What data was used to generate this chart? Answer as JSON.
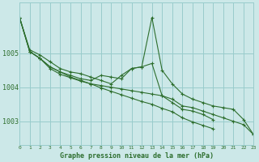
{
  "title": "Graphe pression niveau de la mer (hPa)",
  "background_color": "#cce8e8",
  "grid_color": "#99cccc",
  "line_color": "#2d6e2d",
  "xlim": [
    0,
    23
  ],
  "ylim": [
    1002.3,
    1006.5
  ],
  "yticks": [
    1003,
    1004,
    1005
  ],
  "figsize": [
    3.2,
    2.0
  ],
  "dpi": 100,
  "series": [
    [
      1006.05,
      1005.1,
      1004.95,
      1004.75,
      1004.55,
      1004.45,
      1004.4,
      1004.3,
      1004.2,
      1004.1,
      1004.35,
      1004.55,
      1004.6,
      1006.05,
      1004.5,
      1004.1,
      1003.8,
      1003.65,
      1003.55,
      1003.45,
      1003.4,
      1003.35,
      1003.05,
      1002.6
    ],
    [
      1006.05,
      1005.05,
      1004.85,
      1004.6,
      1004.45,
      1004.35,
      1004.25,
      1004.2,
      1004.35,
      1004.3,
      1004.25,
      1004.55,
      1004.6,
      1004.7,
      1003.75,
      1003.55,
      1003.35,
      1003.3,
      1003.2,
      1003.05,
      null,
      null,
      null,
      null
    ],
    [
      1006.05,
      1005.05,
      1004.85,
      1004.6,
      1004.45,
      1004.3,
      1004.2,
      1004.1,
      1004.05,
      1004.0,
      1003.95,
      1003.9,
      1003.85,
      1003.8,
      1003.75,
      1003.65,
      1003.45,
      1003.4,
      1003.3,
      1003.2,
      1003.1,
      1003.0,
      1002.9,
      1002.6
    ],
    [
      1006.05,
      1005.05,
      1004.85,
      1004.55,
      1004.38,
      1004.28,
      1004.18,
      1004.1,
      1003.98,
      1003.88,
      1003.78,
      1003.68,
      1003.58,
      1003.5,
      1003.38,
      1003.28,
      1003.1,
      1002.98,
      1002.88,
      1002.78,
      null,
      null,
      null,
      null
    ]
  ]
}
